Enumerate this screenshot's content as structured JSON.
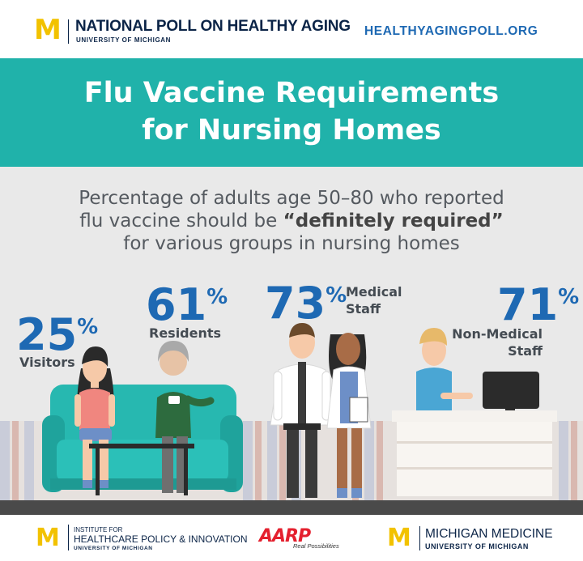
{
  "header": {
    "logo_letter": "M",
    "poll_title": "NATIONAL POLL ON HEALTHY AGING",
    "poll_subtitle": "UNIVERSITY OF MICHIGAN",
    "website": "HEALTHYAGINGPOLL.ORG"
  },
  "banner": {
    "title_line1": "Flu Vaccine Requirements",
    "title_line2": "for Nursing Homes"
  },
  "subtitle": {
    "line1": "Percentage of adults age 50–80 who reported",
    "line2_prefix": "flu vaccine should be ",
    "line2_emphasis": "“definitely required”",
    "line3": "for various groups in nursing homes"
  },
  "stats": [
    {
      "value": "25",
      "unit": "%",
      "label_line1": "Visitors",
      "label_line2": ""
    },
    {
      "value": "61",
      "unit": "%",
      "label_line1": "Residents",
      "label_line2": ""
    },
    {
      "value": "73",
      "unit": "%",
      "label_line1": "Medical",
      "label_line2": "Staff"
    },
    {
      "value": "71",
      "unit": "%",
      "label_line1": "Non-Medical",
      "label_line2": "Staff"
    }
  ],
  "scene": {
    "badge_text": "AARP",
    "badge_sub": "Real Possibilities"
  },
  "footer": {
    "ihpi_line1": "INSTITUTE FOR",
    "ihpi_line2": "HEALTHCARE POLICY & INNOVATION",
    "ihpi_line3": "UNIVERSITY OF MICHIGAN",
    "aarp_logo": "AARP",
    "aarp_tagline": "Real Possibilities",
    "mm_line1": "MICHIGAN MEDICINE",
    "mm_line2": "UNIVERSITY OF MICHIGAN"
  },
  "colors": {
    "teal": "#20b2aa",
    "blue": "#1e69b3",
    "navy": "#0b2447",
    "maize": "#f2c200",
    "aarp_red": "#e4202e"
  }
}
